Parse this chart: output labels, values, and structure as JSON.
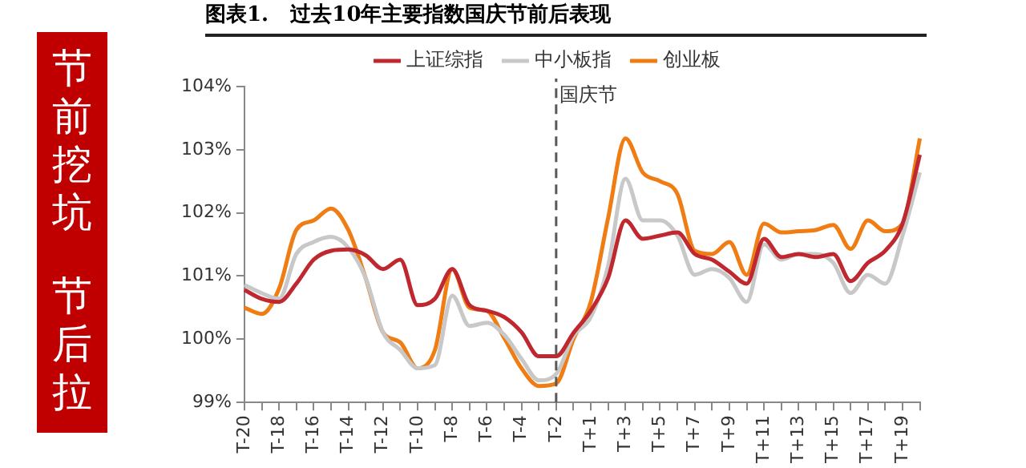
{
  "chart_data": {
    "type": "line",
    "title": "图表1.   过去10年主要指数国庆节前后表现",
    "categories": [
      "T-20",
      null,
      "T-18",
      null,
      "T-16",
      null,
      "T-14",
      null,
      "T-12",
      null,
      "T-10",
      null,
      "T-8",
      null,
      "T-6",
      null,
      "T-4",
      null,
      "T-2",
      null,
      "T+1",
      null,
      "T+3",
      null,
      "T+5",
      null,
      "T+7",
      null,
      "T+9",
      null,
      "T+11",
      null,
      "T+13",
      null,
      "T+15",
      null,
      "T+17",
      null,
      "T+19",
      null
    ],
    "series": [
      {
        "name": "上证综指",
        "color": "#c0282f",
        "values": [
          100.78,
          100.64,
          100.59,
          100.88,
          101.26,
          101.4,
          101.42,
          101.33,
          101.11,
          101.26,
          100.54,
          100.64,
          101.11,
          100.54,
          100.45,
          100.35,
          100.11,
          99.73,
          99.73,
          100.1,
          100.45,
          100.97,
          101.88,
          101.59,
          101.64,
          101.69,
          101.35,
          101.26,
          101.07,
          100.88,
          101.59,
          101.3,
          101.35,
          101.3,
          101.35,
          100.92,
          101.21,
          101.4,
          101.83,
          102.92
        ]
      },
      {
        "name": "中小板指",
        "color": "#c8c8c8",
        "values": [
          100.86,
          100.73,
          100.64,
          101.35,
          101.54,
          101.62,
          101.45,
          100.97,
          100.11,
          99.83,
          99.54,
          99.59,
          100.69,
          100.21,
          100.26,
          100.07,
          99.69,
          99.35,
          99.45,
          100.05,
          100.35,
          101.16,
          102.54,
          101.88,
          101.88,
          101.64,
          101.02,
          101.11,
          100.97,
          100.59,
          101.5,
          101.26,
          101.35,
          101.35,
          101.21,
          100.73,
          101.02,
          100.88,
          101.64,
          102.64
        ]
      },
      {
        "name": "创业板",
        "color": "#f07d14",
        "values": [
          100.5,
          100.4,
          100.8,
          101.73,
          101.88,
          102.07,
          101.73,
          100.97,
          100.11,
          99.95,
          99.54,
          99.83,
          101.11,
          100.5,
          100.45,
          100.02,
          99.54,
          99.26,
          99.3,
          100.0,
          100.59,
          101.92,
          103.18,
          102.64,
          102.5,
          102.3,
          101.4,
          101.35,
          101.54,
          101.02,
          101.83,
          101.69,
          101.71,
          101.73,
          101.81,
          101.43,
          101.88,
          101.71,
          101.83,
          103.18
        ]
      }
    ],
    "ylim": [
      99,
      104
    ],
    "yticks": [
      {
        "value": 99,
        "label": "99%"
      },
      {
        "value": 100,
        "label": "100%"
      },
      {
        "value": 101,
        "label": "101%"
      },
      {
        "value": 102,
        "label": "102%"
      },
      {
        "value": 103,
        "label": "103%"
      },
      {
        "value": 104,
        "label": "104%"
      }
    ],
    "grid": false,
    "legend": "top",
    "marker": "none",
    "line_style": "solid",
    "ref_lines": [
      {
        "axis": "x",
        "value": "T-2",
        "label": "国庆节",
        "color": "#595959",
        "line_style": "dashed"
      }
    ],
    "annotations": [
      "节前挖坑",
      "节后拉"
    ]
  }
}
